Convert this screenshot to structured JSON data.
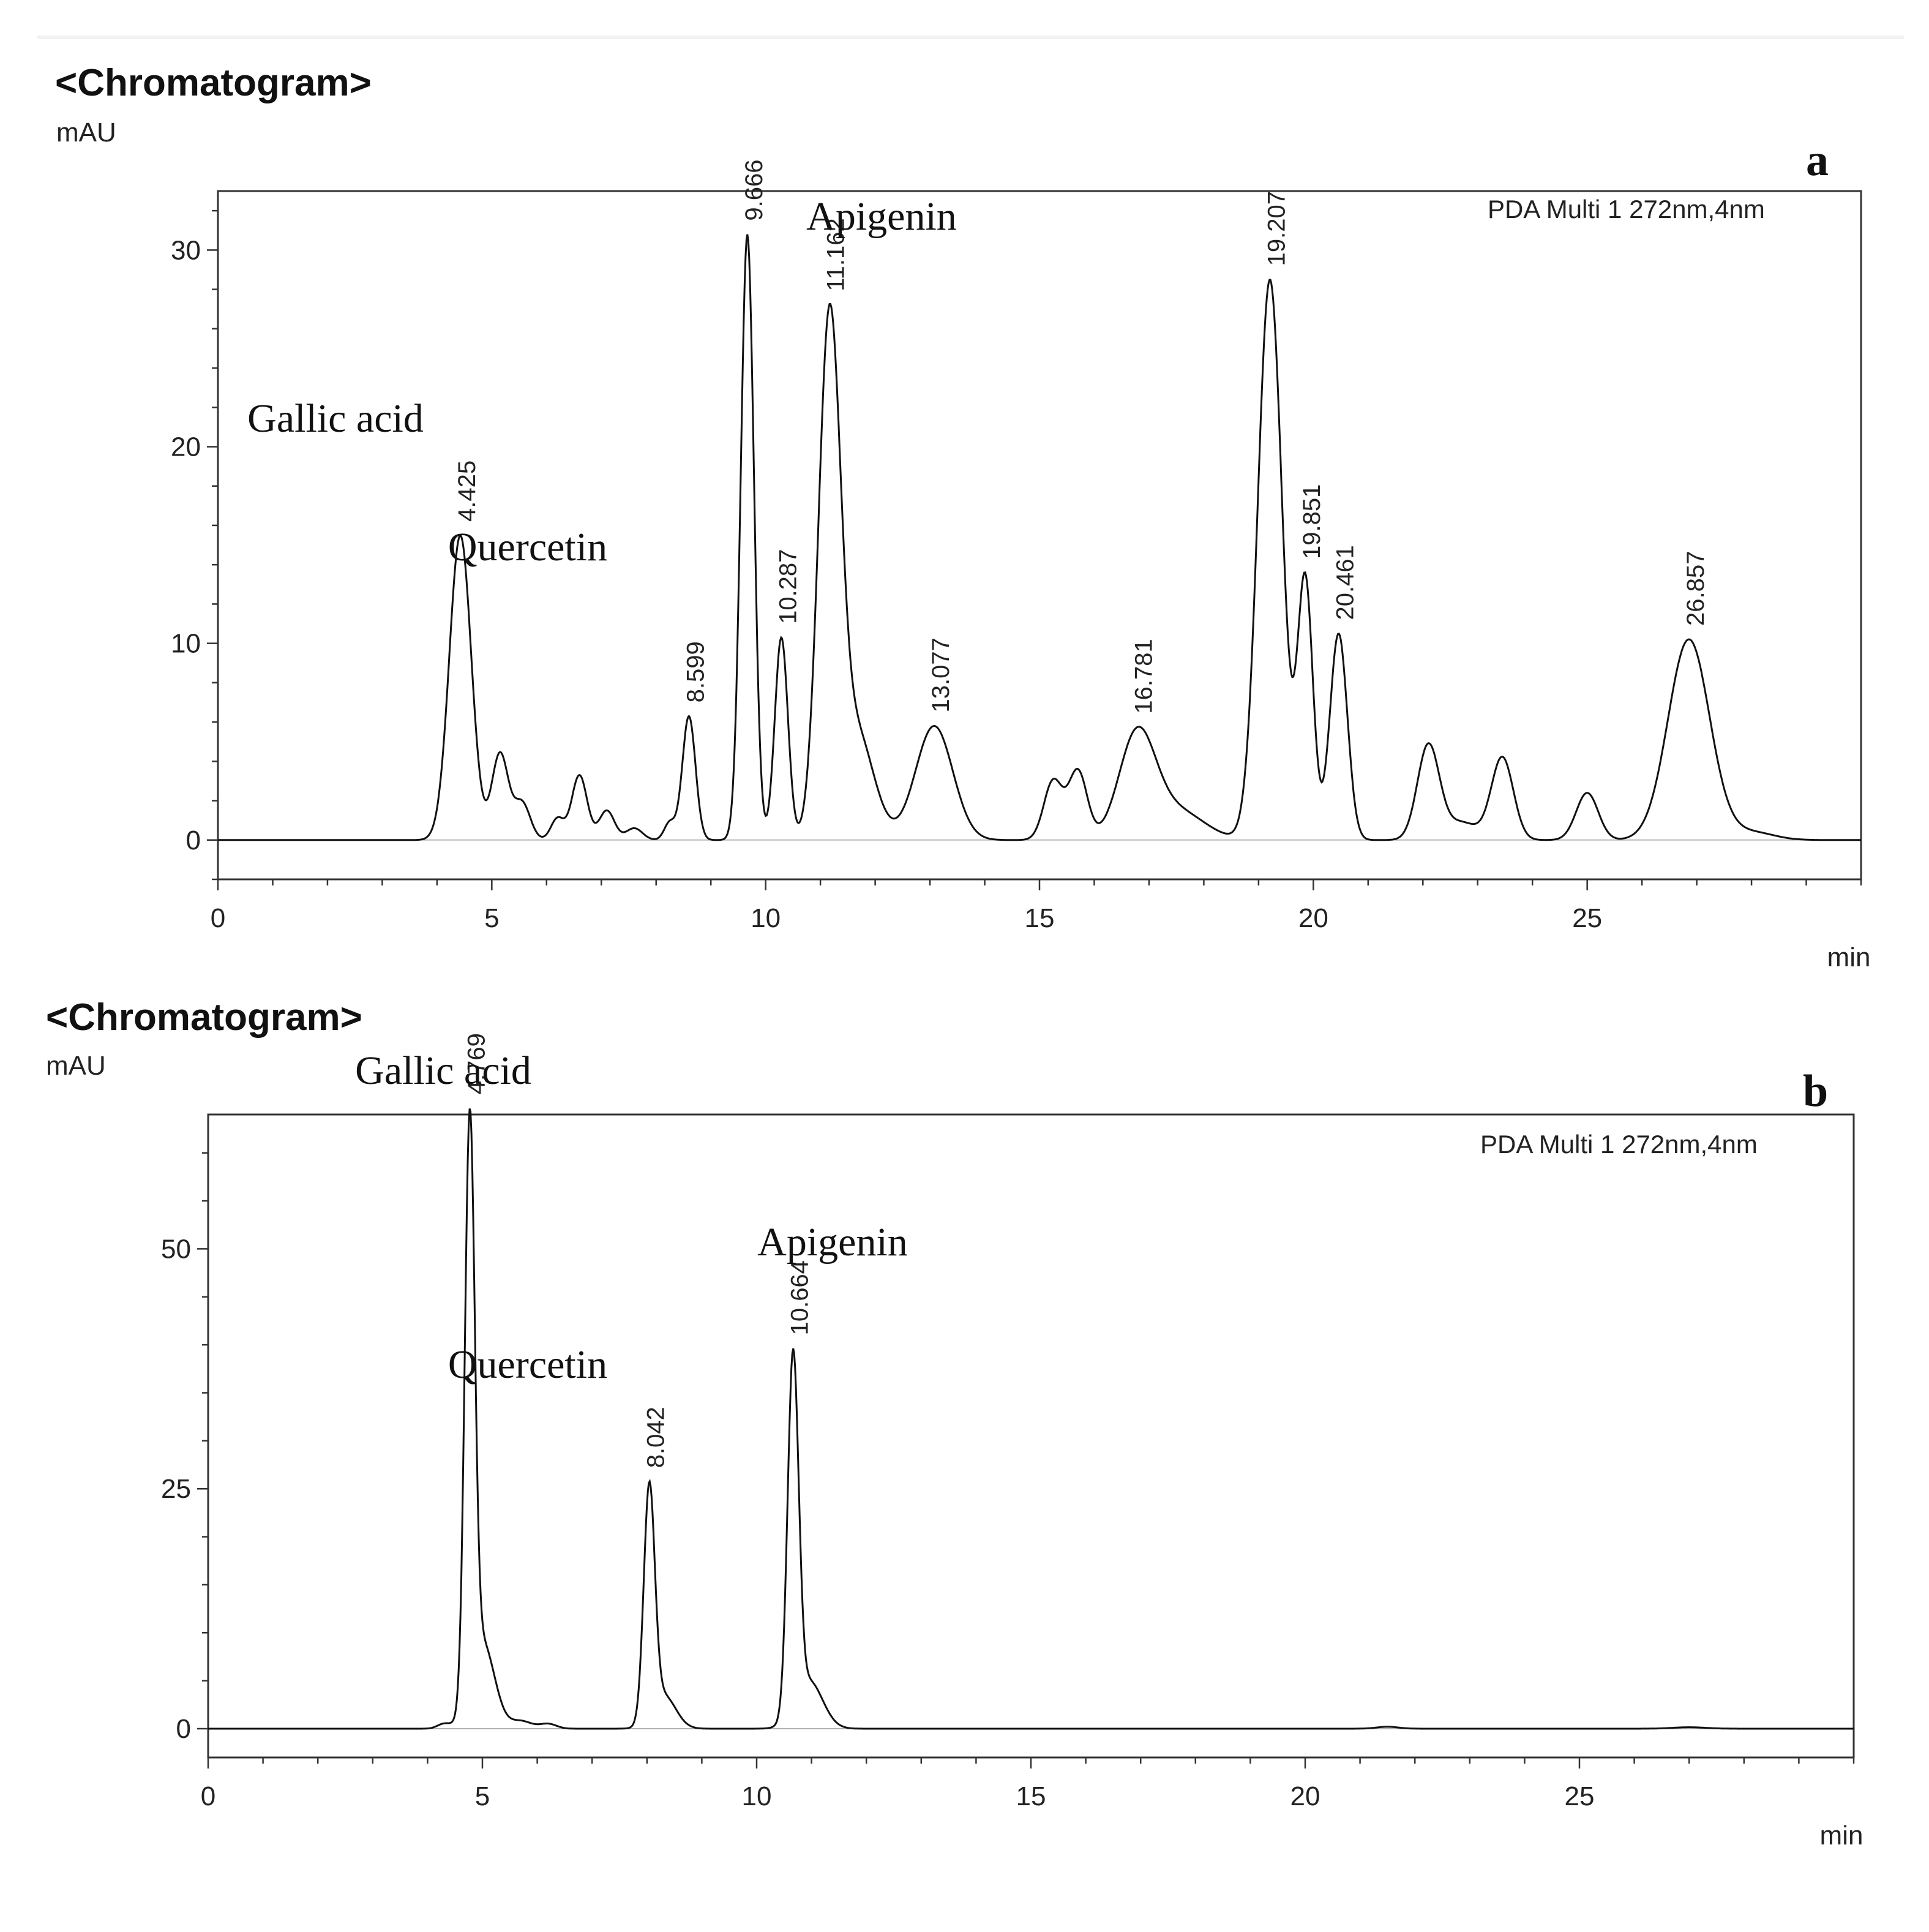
{
  "chart_data": [
    {
      "type": "line",
      "panel": "a",
      "title": "<Chromatogram>",
      "ylabel": "mAU",
      "xlabel": "min",
      "detector": "PDA Multi 1 272nm,4nm",
      "xlim": [
        0,
        30
      ],
      "ylim": [
        -2,
        33
      ],
      "x_ticks": [
        0,
        5,
        10,
        15,
        20,
        25
      ],
      "x_tick_labels": [
        "0",
        "5",
        "10",
        "15",
        "20",
        "25"
      ],
      "y_ticks": [
        0,
        10,
        20,
        30
      ],
      "y_tick_labels": [
        "0",
        "10",
        "20",
        "30"
      ],
      "grid": false,
      "peaks": [
        {
          "rt": 4.425,
          "height": 15.5,
          "width": 0.2,
          "label": "4.425"
        },
        {
          "rt": 5.15,
          "height": 4.4,
          "width": 0.15
        },
        {
          "rt": 5.55,
          "height": 1.9,
          "width": 0.15
        },
        {
          "rt": 6.2,
          "height": 1.1,
          "width": 0.12
        },
        {
          "rt": 6.6,
          "height": 3.3,
          "width": 0.14
        },
        {
          "rt": 7.1,
          "height": 1.5,
          "width": 0.14
        },
        {
          "rt": 7.6,
          "height": 0.6,
          "width": 0.15
        },
        {
          "rt": 8.25,
          "height": 0.9,
          "width": 0.1
        },
        {
          "rt": 8.599,
          "height": 6.3,
          "width": 0.12,
          "label": "8.599"
        },
        {
          "rt": 9.666,
          "height": 30.8,
          "width": 0.12,
          "label": "9.666"
        },
        {
          "rt": 10.287,
          "height": 10.3,
          "width": 0.12,
          "label": "10.287"
        },
        {
          "rt": 11.162,
          "height": 25.5,
          "width": 0.2,
          "label": "11.162"
        },
        {
          "rt": 11.65,
          "height": 5.5,
          "width": 0.32
        },
        {
          "rt": 13.077,
          "height": 5.8,
          "width": 0.34,
          "label": "13.077"
        },
        {
          "rt": 15.25,
          "height": 3.0,
          "width": 0.17
        },
        {
          "rt": 15.7,
          "height": 3.5,
          "width": 0.17
        },
        {
          "rt": 16.781,
          "height": 5.2,
          "width": 0.33,
          "label": "16.781"
        },
        {
          "rt": 17.5,
          "height": 1.5,
          "width": 0.5
        },
        {
          "rt": 19.207,
          "height": 28.5,
          "width": 0.22,
          "label": "19.207"
        },
        {
          "rt": 19.851,
          "height": 13.2,
          "width": 0.14,
          "label": "19.851"
        },
        {
          "rt": 20.461,
          "height": 10.5,
          "width": 0.16,
          "label": "20.461"
        },
        {
          "rt": 22.1,
          "height": 4.8,
          "width": 0.2
        },
        {
          "rt": 22.7,
          "height": 0.9,
          "width": 0.3
        },
        {
          "rt": 23.45,
          "height": 4.2,
          "width": 0.2
        },
        {
          "rt": 25.0,
          "height": 2.4,
          "width": 0.2
        },
        {
          "rt": 26.857,
          "height": 10.2,
          "width": 0.38,
          "label": "26.857"
        },
        {
          "rt": 28.0,
          "height": 0.4,
          "width": 0.4
        }
      ],
      "compound_labels": [
        {
          "text": "Gallic acid",
          "near_rt": 4.425
        },
        {
          "text": "Quercetin",
          "near_rt": 8.599
        },
        {
          "text": "Apigenin",
          "near_rt": 11.162
        }
      ]
    },
    {
      "type": "line",
      "panel": "b",
      "title": "<Chromatogram>",
      "ylabel": "mAU",
      "xlabel": "min",
      "detector": "PDA Multi 1 272nm,4nm",
      "xlim": [
        0,
        30
      ],
      "ylim": [
        -3,
        64
      ],
      "x_ticks": [
        0,
        5,
        10,
        15,
        20,
        25
      ],
      "x_tick_labels": [
        "0",
        "5",
        "10",
        "15",
        "20",
        "25"
      ],
      "y_ticks": [
        0,
        25,
        50
      ],
      "y_tick_labels": [
        "0",
        "25",
        "50"
      ],
      "grid": false,
      "peaks": [
        {
          "rt": 4.3,
          "height": 0.5,
          "width": 0.12
        },
        {
          "rt": 4.769,
          "height": 59.5,
          "width": 0.09,
          "label": "4.769"
        },
        {
          "rt": 5.0,
          "height": 9.0,
          "width": 0.22
        },
        {
          "rt": 5.7,
          "height": 0.8,
          "width": 0.2
        },
        {
          "rt": 6.2,
          "height": 0.5,
          "width": 0.15
        },
        {
          "rt": 8.042,
          "height": 24.0,
          "width": 0.1,
          "label": "8.042"
        },
        {
          "rt": 8.3,
          "height": 3.5,
          "width": 0.22
        },
        {
          "rt": 10.664,
          "height": 37.0,
          "width": 0.1,
          "label": "10.664"
        },
        {
          "rt": 10.95,
          "height": 5.0,
          "width": 0.25
        },
        {
          "rt": 21.5,
          "height": 0.2,
          "width": 0.2
        },
        {
          "rt": 27.0,
          "height": 0.15,
          "width": 0.3
        }
      ],
      "compound_labels": [
        {
          "text": "Gallic acid",
          "near_rt": 4.769
        },
        {
          "text": "Quercetin",
          "near_rt": 8.042
        },
        {
          "text": "Apigenin",
          "near_rt": 10.664
        }
      ]
    }
  ]
}
